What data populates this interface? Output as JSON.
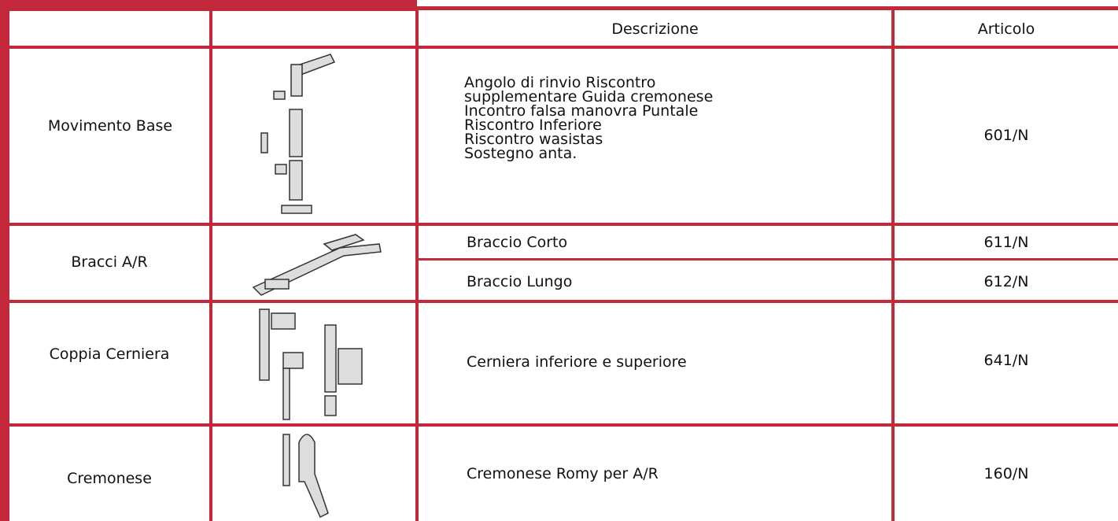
{
  "table": {
    "header": {
      "description": "Descrizione",
      "code": "Articolo"
    },
    "rows": [
      {
        "name": "Movimento Base",
        "items": [
          {
            "description": [
              "Angolo di rinvio Riscontro",
              "supplementare Guida cremonese",
              "Incontro falsa manovra Puntale",
              "Riscontro Inferiore",
              "Riscontro wasistas",
              "Sostegno anta."
            ],
            "code": "601/N"
          }
        ]
      },
      {
        "name": "Bracci A/R",
        "items": [
          {
            "description": [
              "Braccio Corto"
            ],
            "code": "611/N"
          },
          {
            "description": [
              "Braccio Lungo"
            ],
            "code": "612/N"
          }
        ]
      },
      {
        "name": "Coppia Cerniera",
        "items": [
          {
            "description": [
              "Cerniera inferiore e superiore"
            ],
            "code": "641/N"
          }
        ]
      },
      {
        "name": "Cremonese",
        "items": [
          {
            "description": [
              "Cremonese Romy per A/R"
            ],
            "code": "160/N"
          }
        ]
      }
    ]
  }
}
